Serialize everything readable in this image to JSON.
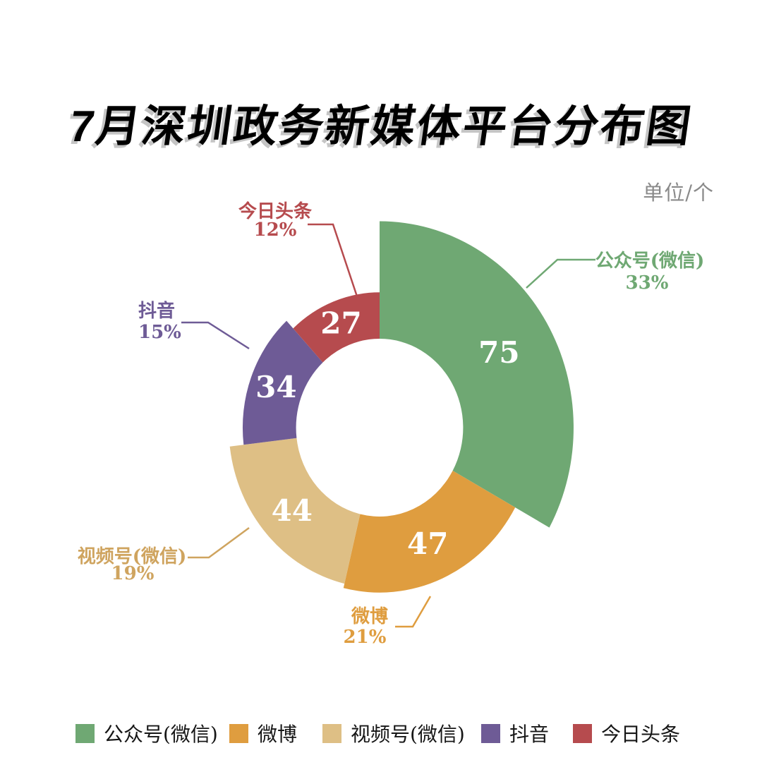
{
  "title": "7月深圳政务新媒体平台分布图",
  "unit_label": "单位/个",
  "chart_data": {
    "type": "pie",
    "variant": "nightingale-rose-donut",
    "title": "7月深圳政务新媒体平台分布图",
    "unit": "单位/个",
    "total": 227,
    "start_angle": "top",
    "direction": "clockwise",
    "legend_position": "bottom",
    "series": [
      {
        "id": "wechat-official-account",
        "name": "公众号(微信)",
        "value": 75,
        "percent": "33%",
        "color": "#6fa873",
        "label_color": "#6fa873"
      },
      {
        "id": "weibo",
        "name": "微博",
        "value": 47,
        "percent": "21%",
        "color": "#df9d3f",
        "label_color": "#df9d3f"
      },
      {
        "id": "wechat-video-channels",
        "name": "视频号(微信)",
        "value": 44,
        "percent": "19%",
        "color": "#debf85",
        "label_color": "#cfa45f"
      },
      {
        "id": "douyin",
        "name": "抖音",
        "value": 34,
        "percent": "15%",
        "color": "#6e5b96",
        "label_color": "#6e5b96"
      },
      {
        "id": "toutiao",
        "name": "今日头条",
        "value": 27,
        "percent": "12%",
        "color": "#b64b4e",
        "label_color": "#b64b4e"
      }
    ]
  },
  "legend": {
    "items": [
      "公众号(微信)",
      "微博",
      "视频号(微信)",
      "抖音",
      "今日头条"
    ]
  }
}
